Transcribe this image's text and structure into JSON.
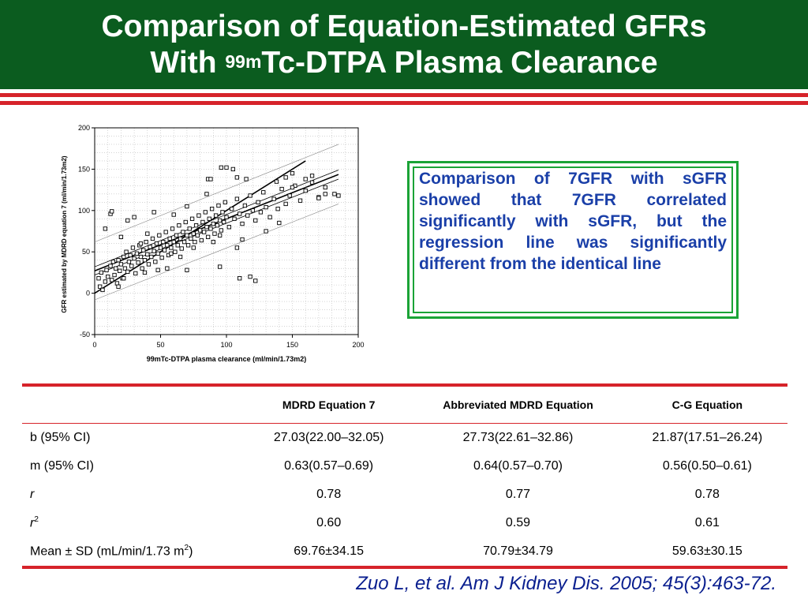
{
  "slide": {
    "title_line1": "Comparison of Equation-Estimated GFRs",
    "title_line2_pre": "With ",
    "title_line2_sup": "99m",
    "title_line2_post": "Tc-DTPA Plasma Clearance",
    "callout": "Comparison of 7GFR with sGFR showed that 7GFR correlated significantly with sGFR, but the regression line was significantly different from the identical line",
    "citation": "Zuo L, et al. Am J Kidney Dis. 2005; 45(3):463-72.",
    "colors": {
      "title_bg": "#0b5c1f",
      "rule": "#d6232a",
      "callout_border": "#1aa336",
      "callout_text": "#1a3fa8",
      "citation": "#0a1f8f"
    }
  },
  "chart_data": {
    "type": "scatter",
    "xlabel": "99mTc-DTPA plasma clearance (ml/min/1.73m2)",
    "ylabel": "GFR estimated by MDRD equation 7 (ml/min/1.73m2)",
    "xlim": [
      0,
      200
    ],
    "ylim": [
      -50,
      200
    ],
    "x_ticks": [
      "0",
      "50",
      "100",
      "150",
      "200"
    ],
    "y_ticks": [
      "200",
      "150",
      "100",
      "50",
      "0",
      "-50"
    ],
    "grid": true,
    "lines": [
      {
        "name": "identity",
        "x": [
          0,
          160
        ],
        "y": [
          0,
          160
        ]
      },
      {
        "name": "regression",
        "x": [
          0,
          185
        ],
        "y": [
          27.03,
          143.6
        ]
      },
      {
        "name": "upper confidence",
        "x": [
          0,
          185
        ],
        "y": [
          32.0,
          149.0
        ]
      },
      {
        "name": "lower confidence",
        "x": [
          0,
          185
        ],
        "y": [
          22.0,
          138.0
        ]
      },
      {
        "name": "upper prediction",
        "x": [
          0,
          185
        ],
        "y": [
          62.0,
          180.0
        ]
      },
      {
        "name": "lower prediction",
        "x": [
          0,
          185
        ],
        "y": [
          -8.0,
          108.0
        ]
      }
    ],
    "points": [
      [
        3,
        18
      ],
      [
        4,
        8
      ],
      [
        5,
        25
      ],
      [
        6,
        4
      ],
      [
        8,
        14
      ],
      [
        9,
        28
      ],
      [
        10,
        20
      ],
      [
        12,
        33
      ],
      [
        13,
        16
      ],
      [
        14,
        38
      ],
      [
        15,
        22
      ],
      [
        16,
        30
      ],
      [
        17,
        12
      ],
      [
        18,
        40
      ],
      [
        19,
        27
      ],
      [
        20,
        35
      ],
      [
        21,
        18
      ],
      [
        22,
        44
      ],
      [
        23,
        30
      ],
      [
        24,
        50
      ],
      [
        25,
        26
      ],
      [
        26,
        38
      ],
      [
        27,
        46
      ],
      [
        28,
        33
      ],
      [
        29,
        55
      ],
      [
        30,
        42
      ],
      [
        31,
        24
      ],
      [
        32,
        48
      ],
      [
        33,
        37
      ],
      [
        34,
        58
      ],
      [
        35,
        44
      ],
      [
        36,
        30
      ],
      [
        37,
        52
      ],
      [
        38,
        40
      ],
      [
        39,
        62
      ],
      [
        40,
        47
      ],
      [
        41,
        35
      ],
      [
        42,
        56
      ],
      [
        43,
        44
      ],
      [
        44,
        66
      ],
      [
        45,
        51
      ],
      [
        46,
        38
      ],
      [
        47,
        60
      ],
      [
        48,
        48
      ],
      [
        49,
        70
      ],
      [
        50,
        55
      ],
      [
        51,
        43
      ],
      [
        52,
        62
      ],
      [
        53,
        52
      ],
      [
        54,
        74
      ],
      [
        55,
        58
      ],
      [
        56,
        46
      ],
      [
        57,
        66
      ],
      [
        58,
        55
      ],
      [
        59,
        78
      ],
      [
        60,
        62
      ],
      [
        61,
        50
      ],
      [
        62,
        70
      ],
      [
        63,
        58
      ],
      [
        64,
        82
      ],
      [
        65,
        66
      ],
      [
        66,
        54
      ],
      [
        67,
        74
      ],
      [
        68,
        62
      ],
      [
        69,
        86
      ],
      [
        70,
        70
      ],
      [
        71,
        58
      ],
      [
        72,
        78
      ],
      [
        73,
        66
      ],
      [
        74,
        90
      ],
      [
        75,
        72
      ],
      [
        76,
        62
      ],
      [
        77,
        82
      ],
      [
        78,
        70
      ],
      [
        79,
        94
      ],
      [
        80,
        76
      ],
      [
        81,
        64
      ],
      [
        82,
        86
      ],
      [
        83,
        74
      ],
      [
        84,
        98
      ],
      [
        85,
        80
      ],
      [
        86,
        68
      ],
      [
        87,
        90
      ],
      [
        88,
        78
      ],
      [
        89,
        102
      ],
      [
        90,
        84
      ],
      [
        91,
        72
      ],
      [
        92,
        94
      ],
      [
        93,
        82
      ],
      [
        94,
        106
      ],
      [
        95,
        88
      ],
      [
        96,
        76
      ],
      [
        97,
        98
      ],
      [
        98,
        86
      ],
      [
        99,
        110
      ],
      [
        100,
        92
      ],
      [
        102,
        80
      ],
      [
        104,
        102
      ],
      [
        106,
        90
      ],
      [
        108,
        114
      ],
      [
        110,
        96
      ],
      [
        112,
        84
      ],
      [
        114,
        106
      ],
      [
        116,
        94
      ],
      [
        118,
        118
      ],
      [
        120,
        100
      ],
      [
        122,
        88
      ],
      [
        124,
        110
      ],
      [
        126,
        98
      ],
      [
        128,
        122
      ],
      [
        130,
        104
      ],
      [
        133,
        92
      ],
      [
        136,
        114
      ],
      [
        139,
        102
      ],
      [
        142,
        126
      ],
      [
        145,
        108
      ],
      [
        148,
        118
      ],
      [
        152,
        130
      ],
      [
        156,
        112
      ],
      [
        160,
        124
      ],
      [
        165,
        134
      ],
      [
        170,
        116
      ],
      [
        175,
        128
      ],
      [
        182,
        120
      ],
      [
        185,
        118
      ],
      [
        12,
        96
      ],
      [
        13,
        99
      ],
      [
        8,
        78
      ],
      [
        25,
        88
      ],
      [
        30,
        92
      ],
      [
        45,
        98
      ],
      [
        20,
        68
      ],
      [
        40,
        72
      ],
      [
        60,
        95
      ],
      [
        70,
        105
      ],
      [
        85,
        120
      ],
      [
        96,
        152
      ],
      [
        100,
        152
      ],
      [
        108,
        140
      ],
      [
        115,
        138
      ],
      [
        138,
        135
      ],
      [
        145,
        140
      ],
      [
        150,
        145
      ],
      [
        160,
        138
      ],
      [
        165,
        142
      ],
      [
        35,
        60
      ],
      [
        55,
        30
      ],
      [
        38,
        25
      ],
      [
        22,
        18
      ],
      [
        18,
        8
      ],
      [
        65,
        44
      ],
      [
        75,
        55
      ],
      [
        90,
        62
      ],
      [
        95,
        70
      ],
      [
        118,
        20
      ],
      [
        122,
        15
      ],
      [
        110,
        18
      ],
      [
        95,
        32
      ],
      [
        108,
        55
      ],
      [
        112,
        65
      ],
      [
        130,
        75
      ],
      [
        140,
        85
      ],
      [
        70,
        28
      ],
      [
        58,
        48
      ],
      [
        48,
        28
      ],
      [
        86,
        138
      ],
      [
        88,
        138
      ],
      [
        105,
        150
      ],
      [
        150,
        128
      ],
      [
        175,
        120
      ],
      [
        170,
        115
      ]
    ]
  },
  "table": {
    "headers": [
      "",
      "MDRD Equation 7",
      "Abbreviated MDRD Equation",
      "C-G Equation"
    ],
    "rows": [
      {
        "label": "b (95% CI)",
        "values": [
          "27.03(22.00–32.05)",
          "27.73(22.61–32.86)",
          "21.87(17.51–26.24)"
        ]
      },
      {
        "label": "m (95% CI)",
        "values": [
          "0.63(0.57–0.69)",
          "0.64(0.57–0.70)",
          "0.56(0.50–0.61)"
        ]
      },
      {
        "label": "r",
        "values": [
          "0.78",
          "0.77",
          "0.78"
        ]
      },
      {
        "label_main": "r",
        "label_sup": "2",
        "values": [
          "0.60",
          "0.59",
          "0.61"
        ]
      },
      {
        "label_main": "Mean ± SD (mL/min/1.73 m",
        "label_sup": "2",
        "label_tail": ")",
        "values": [
          "69.76±34.15",
          "70.79±34.79",
          "59.63±30.15"
        ]
      }
    ]
  }
}
